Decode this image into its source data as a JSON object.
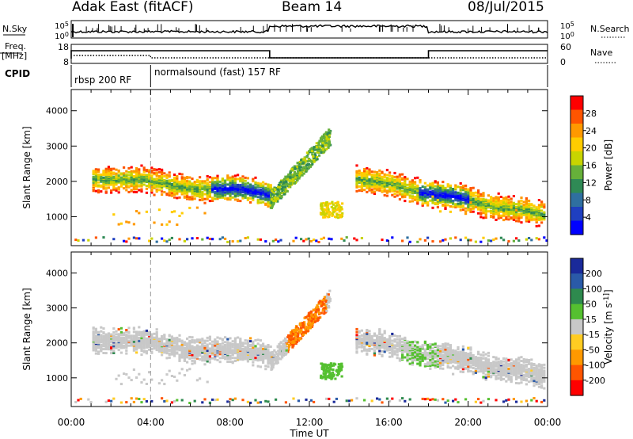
{
  "header": {
    "radar": "Adak East (fitACF)",
    "beam": "Beam 14",
    "date": "08/Jul/2015"
  },
  "noise_panel": {
    "left_label": "N.Sky",
    "right_label": "N.Search",
    "left_ticks": [
      "10^5",
      "10^0"
    ],
    "right_ticks": [
      "10^5",
      "10^0"
    ]
  },
  "freq_panel": {
    "left_label_line1": "Freq.",
    "left_label_line2": "[MHz]",
    "right_label": "Nave",
    "left_ticks": [
      "18",
      "8"
    ],
    "right_ticks": [
      "60",
      "0"
    ]
  },
  "cpid": {
    "label": "CPID",
    "segments": [
      {
        "start_hour": 0,
        "end_hour": 4,
        "text": "rbsp 200 RF"
      },
      {
        "start_hour": 4,
        "end_hour": 24,
        "text": "normalsound (fast) 157 RF"
      }
    ]
  },
  "chart_data": [
    {
      "type": "heatmap",
      "panel": "power",
      "ylabel": "Slant Range [km]",
      "yticks": [
        1000,
        2000,
        3000,
        4000
      ],
      "ylim": [
        180,
        4600
      ],
      "xlim": [
        0,
        24
      ],
      "colorbar": {
        "label": "Power [dB]",
        "ticks": [
          "28",
          "24",
          "20",
          "16",
          "12",
          "8",
          "4"
        ],
        "colors": [
          "#ff0000",
          "#ff5500",
          "#ff9900",
          "#ffcc00",
          "#c8d400",
          "#66b03a",
          "#2f8a55",
          "#2f6fa0",
          "#1f3fc0",
          "#0000ff"
        ]
      }
    },
    {
      "type": "heatmap",
      "panel": "velocity",
      "ylabel": "Slant Range [km]",
      "yticks": [
        1000,
        2000,
        3000,
        4000
      ],
      "ylim": [
        180,
        4600
      ],
      "xlim": [
        0,
        24
      ],
      "xlabel": "Time UT",
      "xticks": [
        "00:00",
        "04:00",
        "08:00",
        "12:00",
        "16:00",
        "20:00",
        "00:00"
      ],
      "colorbar": {
        "label": "Velocity [m s^-1]",
        "ticks": [
          "200",
          "100",
          "50",
          "15",
          "-15",
          "-50",
          "-100",
          "-200"
        ],
        "colors": [
          "#1a2a9a",
          "#2a5aa8",
          "#2e8a4e",
          "#55c030",
          "#c8c8c8",
          "#ffcc22",
          "#ff9900",
          "#ff5500",
          "#ff0000"
        ]
      }
    }
  ]
}
